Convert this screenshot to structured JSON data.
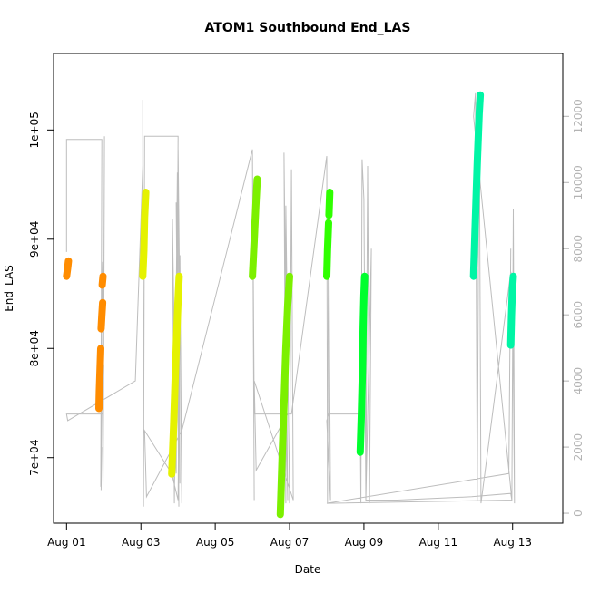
{
  "chart_data": {
    "type": "scatter",
    "title": "ATOM1 Southbound End_LAS",
    "xlabel": "Date",
    "ylabel": "End_LAS",
    "x_ticks": [
      "Aug 01",
      "Aug 03",
      "Aug 05",
      "Aug 07",
      "Aug 09",
      "Aug 11",
      "Aug 13"
    ],
    "xlim": [
      -0.35,
      13.35
    ],
    "y_left": {
      "ticks": [
        70000,
        80000,
        90000,
        100000
      ],
      "tick_labels": [
        "7e+04",
        "8e+04",
        "9e+04",
        "1e+05"
      ],
      "ylim": [
        64000,
        107000
      ]
    },
    "y_right": {
      "ticks": [
        0,
        2000,
        4000,
        6000,
        8000,
        10000,
        12000
      ],
      "tick_labels": [
        "0",
        "2000",
        "4000",
        "6000",
        "8000",
        "10000",
        "12000"
      ],
      "ylim": [
        -300,
        13900
      ],
      "color": "#b3b3b3"
    },
    "grey_series_color": "#bdbdbd",
    "grey_series": [
      [
        0,
        7900
      ],
      [
        0,
        7900
      ],
      [
        0,
        11300
      ],
      [
        0.95,
        11300
      ],
      [
        0.92,
        800
      ],
      [
        0.95,
        2000
      ],
      [
        0.93,
        700
      ],
      [
        0.97,
        5500
      ],
      [
        0.95,
        7600
      ],
      [
        1.0,
        5000
      ],
      [
        1.02,
        11400
      ],
      [
        0.98,
        800
      ],
      [
        1.0,
        4500
      ],
      [
        0.99,
        3000
      ],
      [
        0,
        3000
      ],
      [
        0.03,
        2800
      ],
      [
        1.85,
        4000
      ],
      [
        2.05,
        10500
      ],
      [
        2.05,
        12500
      ],
      [
        2.07,
        200
      ],
      [
        2.1,
        11400
      ],
      [
        3.0,
        11400
      ],
      [
        2.95,
        1200
      ],
      [
        2.85,
        8900
      ],
      [
        2.9,
        300
      ],
      [
        2.98,
        10300
      ],
      [
        3.02,
        200
      ],
      [
        2.95,
        9400
      ],
      [
        3.05,
        900
      ],
      [
        3.0,
        11000
      ],
      [
        3.1,
        300
      ],
      [
        3.05,
        7800
      ],
      [
        3.0,
        400
      ],
      [
        2.83,
        1200
      ],
      [
        2.1,
        2500
      ],
      [
        2.15,
        500
      ],
      [
        3.1,
        2500
      ],
      [
        5.0,
        11000
      ],
      [
        5.05,
        400
      ],
      [
        5.0,
        11000
      ],
      [
        5.05,
        3000
      ],
      [
        5.9,
        3000
      ],
      [
        5.95,
        400
      ],
      [
        5.85,
        10900
      ],
      [
        5.9,
        300
      ],
      [
        5.9,
        9300
      ],
      [
        6.0,
        300
      ],
      [
        6.05,
        10400
      ],
      [
        6.1,
        400
      ],
      [
        5.05,
        4000
      ],
      [
        5.1,
        1300
      ],
      [
        5.95,
        3000
      ],
      [
        6.05,
        3000
      ],
      [
        7.0,
        10800
      ],
      [
        7.02,
        300
      ],
      [
        7.05,
        9400
      ],
      [
        7.1,
        400
      ],
      [
        7.0,
        2800
      ],
      [
        7.05,
        3000
      ],
      [
        7.9,
        3000
      ],
      [
        7.92,
        300
      ],
      [
        7.95,
        10700
      ],
      [
        8.0,
        9500
      ],
      [
        8.05,
        400
      ],
      [
        8.1,
        10500
      ],
      [
        8.15,
        300
      ],
      [
        8.2,
        8000
      ],
      [
        8.05,
        400
      ],
      [
        8.05,
        400
      ],
      [
        8.9,
        400
      ],
      [
        10.9,
        500
      ],
      [
        11.95,
        600
      ],
      [
        11.98,
        400
      ],
      [
        10.95,
        12000
      ],
      [
        11.0,
        12700
      ],
      [
        11.05,
        400
      ],
      [
        11.1,
        12700
      ],
      [
        11.15,
        300
      ],
      [
        11.95,
        7300
      ],
      [
        12.0,
        7100
      ],
      [
        12.05,
        300
      ],
      [
        12.02,
        9200
      ],
      [
        11.98,
        400
      ],
      [
        7.0,
        300
      ],
      [
        11.9,
        1200
      ],
      [
        11.95,
        8000
      ]
    ],
    "series": [
      {
        "color": "#ff8c00",
        "segments": [
          [
            [
              0.0,
              86600
            ],
            [
              0.03,
              87400
            ],
            [
              0.05,
              88000
            ]
          ],
          [
            [
              0.87,
              74500
            ],
            [
              0.88,
              76000
            ],
            [
              0.9,
              78000
            ],
            [
              0.92,
              80000
            ]
          ],
          [
            [
              0.93,
              81800
            ],
            [
              0.95,
              83000
            ],
            [
              0.97,
              84200
            ]
          ],
          [
            [
              0.96,
              85800
            ],
            [
              0.98,
              86600
            ]
          ]
        ]
      },
      {
        "color": "#e5f200",
        "segments": [
          [
            [
              2.05,
              86600
            ],
            [
              2.08,
              89000
            ],
            [
              2.1,
              92000
            ],
            [
              2.13,
              94300
            ]
          ],
          [
            [
              2.83,
              68500
            ],
            [
              2.88,
              73000
            ],
            [
              2.93,
              78000
            ],
            [
              2.97,
              82000
            ],
            [
              3.0,
              84500
            ],
            [
              3.03,
              86600
            ]
          ]
        ]
      },
      {
        "color": "#7cf000",
        "segments": [
          [
            [
              5.0,
              86600
            ],
            [
              5.05,
              90000
            ],
            [
              5.09,
              93000
            ],
            [
              5.13,
              95500
            ]
          ],
          [
            [
              5.75,
              64800
            ],
            [
              5.8,
              70000
            ],
            [
              5.85,
              75000
            ],
            [
              5.9,
              80000
            ],
            [
              5.95,
              84000
            ],
            [
              6.0,
              86600
            ]
          ]
        ]
      },
      {
        "color": "#2fff00",
        "segments": [
          [
            [
              7.0,
              86600
            ],
            [
              7.02,
              89000
            ],
            [
              7.05,
              91500
            ]
          ],
          [
            [
              7.06,
              92200
            ],
            [
              7.08,
              94300
            ]
          ]
        ]
      },
      {
        "color": "#00ff2e",
        "segments": [
          [
            [
              7.9,
              70500
            ],
            [
              7.93,
              74000
            ],
            [
              7.96,
              78000
            ],
            [
              7.98,
              82000
            ],
            [
              8.0,
              84800
            ],
            [
              8.02,
              86600
            ]
          ]
        ]
      },
      {
        "color": "#00f5a5",
        "segments": [
          [
            [
              10.95,
              86600
            ],
            [
              11.0,
              92000
            ],
            [
              11.05,
              97000
            ],
            [
              11.1,
              101500
            ],
            [
              11.13,
              103200
            ]
          ],
          [
            [
              11.95,
              80300
            ],
            [
              11.97,
              83000
            ],
            [
              11.99,
              85000
            ],
            [
              12.02,
              86600
            ]
          ]
        ]
      }
    ],
    "grid": false,
    "legend": "none"
  }
}
